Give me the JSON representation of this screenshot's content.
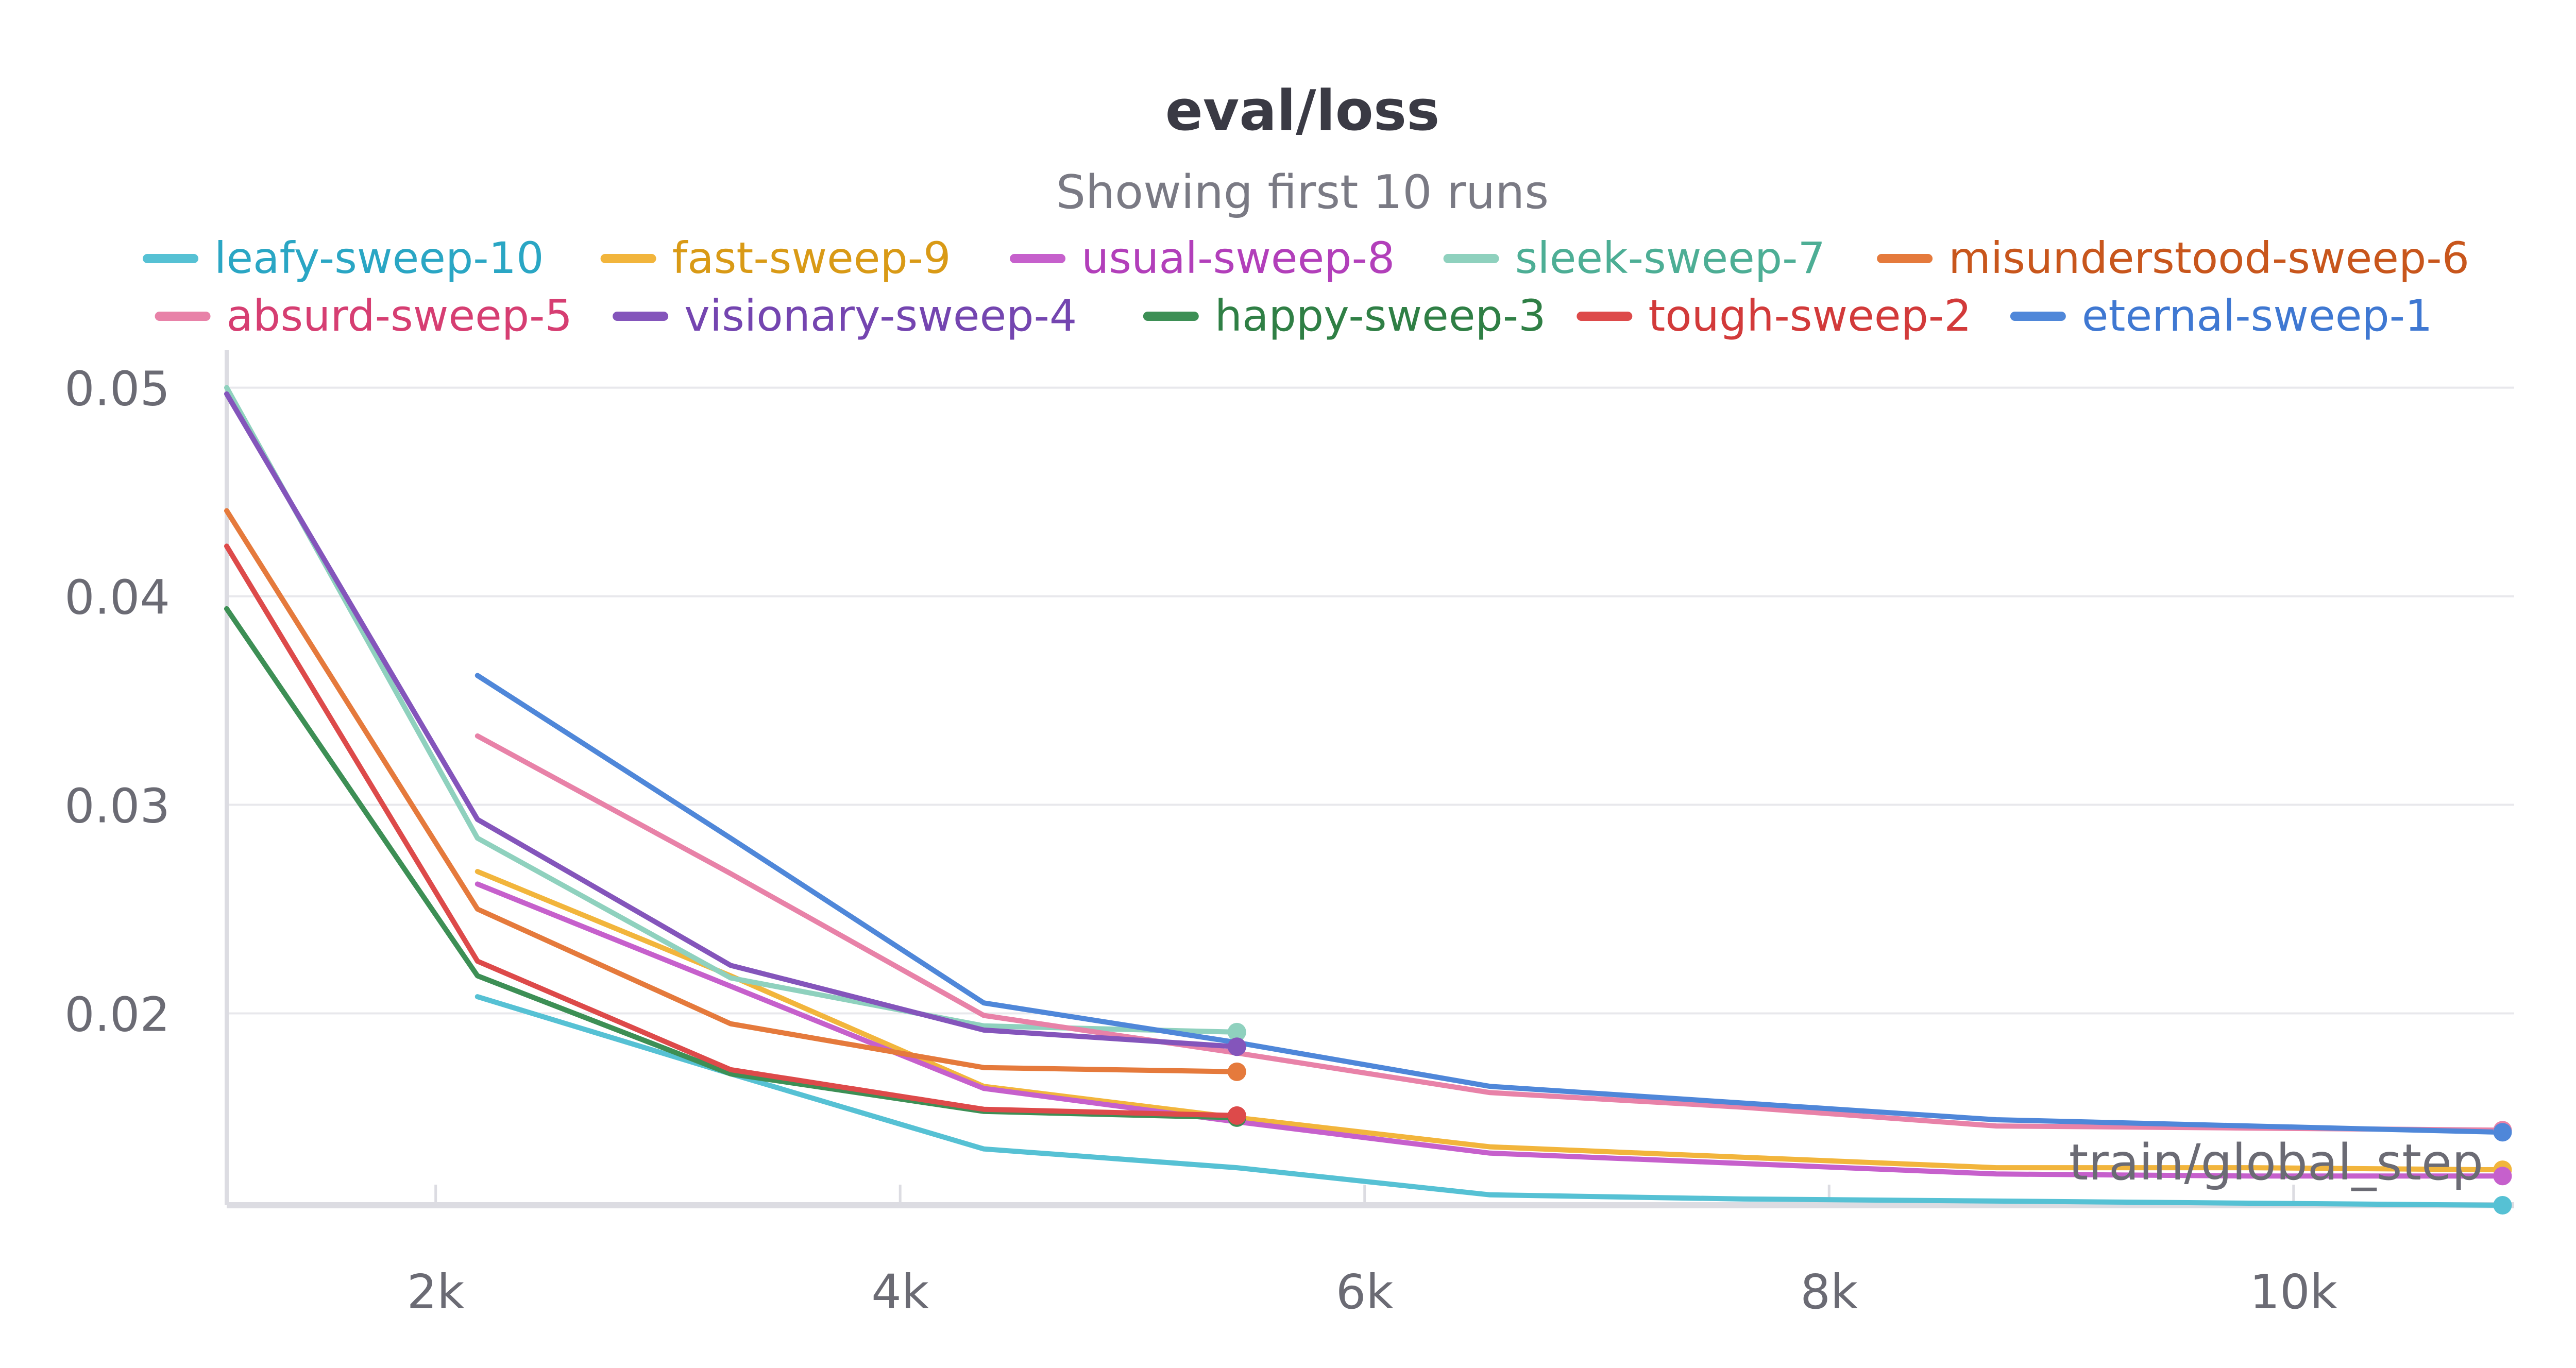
{
  "chart_data": {
    "type": "line",
    "title": "eval/loss",
    "subtitle": "Showing first 10 runs",
    "xlabel": "train/global_step",
    "ylabel": "",
    "xlim": [
      1100,
      10950
    ],
    "ylim": [
      0.0108,
      0.0513
    ],
    "xticks": [
      2000,
      4000,
      6000,
      8000,
      10000
    ],
    "xtick_labels": [
      "2k",
      "4k",
      "6k",
      "8k",
      "10k"
    ],
    "yticks": [
      0.02,
      0.03,
      0.04,
      0.05
    ],
    "ytick_labels": [
      "0.02",
      "0.03",
      "0.04",
      "0.05"
    ],
    "grid": true,
    "legend_position": "top",
    "series": [
      {
        "name": "leafy-sweep-10",
        "color": "#56c1d4",
        "label_color": "#2aa6c4",
        "x": [
          2180,
          3270,
          4360,
          5450,
          6540,
          7630,
          8720,
          9810,
          10900
        ],
        "y": [
          0.0208,
          0.0171,
          0.0135,
          0.0126,
          0.0113,
          0.0111,
          0.011,
          0.0109,
          0.0108
        ]
      },
      {
        "name": "fast-sweep-9",
        "color": "#f2b53c",
        "label_color": "#d99a16",
        "x": [
          2180,
          3270,
          4360,
          5450,
          6540,
          7630,
          8720,
          9810,
          10900
        ],
        "y": [
          0.0268,
          0.0218,
          0.0165,
          0.015,
          0.0136,
          0.0131,
          0.0126,
          0.0126,
          0.0125
        ]
      },
      {
        "name": "usual-sweep-8",
        "color": "#c660cc",
        "label_color": "#b23fba",
        "x": [
          2180,
          3270,
          4360,
          5450,
          6540,
          7630,
          8720,
          9810,
          10900
        ],
        "y": [
          0.0262,
          0.0213,
          0.0164,
          0.0148,
          0.0133,
          0.0128,
          0.0123,
          0.0122,
          0.0122
        ]
      },
      {
        "name": "sleek-sweep-7",
        "color": "#8fd1be",
        "label_color": "#4dae95",
        "x": [
          1100,
          2180,
          3270,
          4360,
          5450
        ],
        "y": [
          0.05,
          0.0284,
          0.0217,
          0.0194,
          0.0191
        ]
      },
      {
        "name": "misunderstood-sweep-6",
        "color": "#e57a3c",
        "label_color": "#c8561c",
        "x": [
          1100,
          2180,
          3270,
          4360,
          5450
        ],
        "y": [
          0.0441,
          0.025,
          0.0195,
          0.0174,
          0.0172
        ]
      },
      {
        "name": "absurd-sweep-5",
        "color": "#e882a8",
        "label_color": "#d63e72",
        "x": [
          2180,
          3270,
          4360,
          5450,
          6540,
          7630,
          8720,
          9810,
          10900
        ],
        "y": [
          0.0333,
          0.0267,
          0.0199,
          0.0181,
          0.0162,
          0.0155,
          0.0146,
          0.0145,
          0.0144
        ]
      },
      {
        "name": "visionary-sweep-4",
        "color": "#8455bb",
        "label_color": "#7445b0",
        "x": [
          1100,
          2180,
          3270,
          4360,
          5450
        ],
        "y": [
          0.0497,
          0.0293,
          0.0223,
          0.0192,
          0.0184
        ]
      },
      {
        "name": "happy-sweep-3",
        "color": "#3d8f55",
        "label_color": "#2f7f45",
        "x": [
          1100,
          2180,
          3270,
          4360,
          5450
        ],
        "y": [
          0.0394,
          0.0218,
          0.0171,
          0.0153,
          0.015
        ]
      },
      {
        "name": "tough-sweep-2",
        "color": "#dd4a4a",
        "label_color": "#d23a3a",
        "x": [
          1100,
          2180,
          3270,
          4360,
          5450
        ],
        "y": [
          0.0424,
          0.0225,
          0.0173,
          0.0154,
          0.0151
        ]
      },
      {
        "name": "eternal-sweep-1",
        "color": "#4f87d9",
        "label_color": "#3f78d2",
        "x": [
          2180,
          3270,
          4360,
          5450,
          6540,
          7630,
          8720,
          9810,
          10900
        ],
        "y": [
          0.0362,
          0.0284,
          0.0205,
          0.0186,
          0.0165,
          0.0157,
          0.0149,
          0.0146,
          0.0143
        ]
      }
    ]
  }
}
